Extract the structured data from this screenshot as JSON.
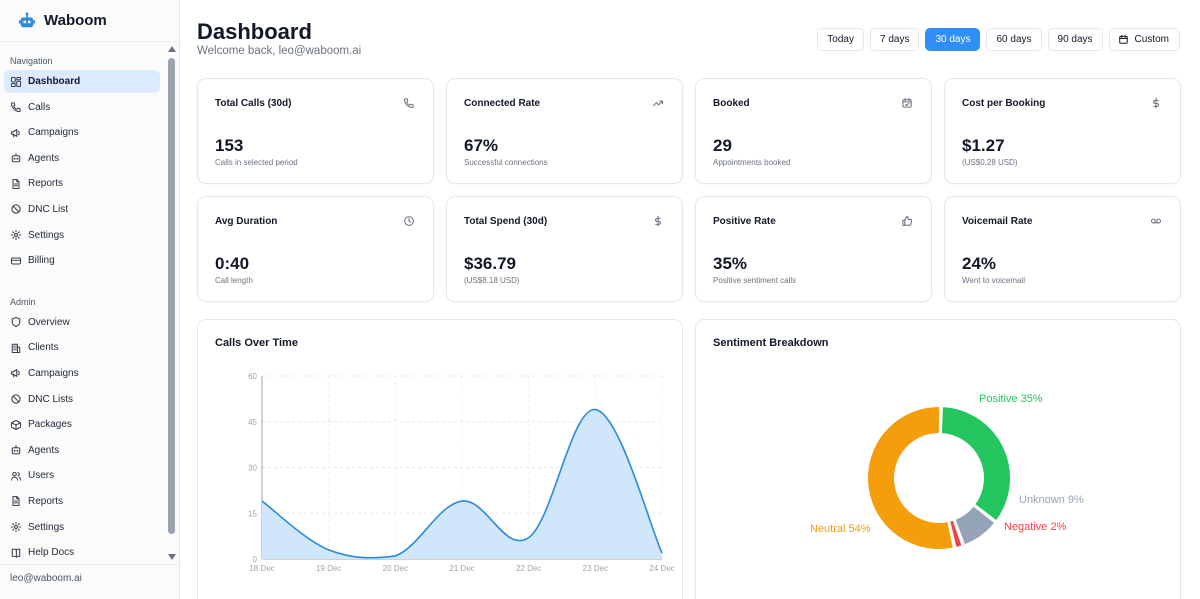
{
  "app": {
    "name": "Waboom"
  },
  "sidebar": {
    "sections": [
      {
        "label": "Navigation",
        "items": [
          {
            "label": "Dashboard",
            "icon": "dashboard-icon",
            "active": true
          },
          {
            "label": "Calls",
            "icon": "phone-icon"
          },
          {
            "label": "Campaigns",
            "icon": "megaphone-icon"
          },
          {
            "label": "Agents",
            "icon": "bot-icon"
          },
          {
            "label": "Reports",
            "icon": "file-icon"
          },
          {
            "label": "DNC List",
            "icon": "ban-icon"
          },
          {
            "label": "Settings",
            "icon": "gear-icon"
          },
          {
            "label": "Billing",
            "icon": "credit-card-icon"
          }
        ]
      },
      {
        "label": "Admin",
        "items": [
          {
            "label": "Overview",
            "icon": "shield-icon"
          },
          {
            "label": "Clients",
            "icon": "building-icon"
          },
          {
            "label": "Campaigns",
            "icon": "megaphone-icon"
          },
          {
            "label": "DNC Lists",
            "icon": "ban-icon"
          },
          {
            "label": "Packages",
            "icon": "package-icon"
          },
          {
            "label": "Agents",
            "icon": "bot-icon"
          },
          {
            "label": "Users",
            "icon": "users-icon"
          },
          {
            "label": "Reports",
            "icon": "file-icon"
          },
          {
            "label": "Settings",
            "icon": "gear-icon"
          },
          {
            "label": "Help Docs",
            "icon": "book-icon"
          }
        ]
      }
    ],
    "footer_email": "leo@waboom.ai"
  },
  "header": {
    "title": "Dashboard",
    "subtitle": "Welcome back, leo@waboom.ai",
    "ranges": [
      "Today",
      "7 days",
      "30 days",
      "60 days",
      "90 days"
    ],
    "active_range": "30 days",
    "custom_label": "Custom"
  },
  "stats": [
    {
      "title": "Total Calls (30d)",
      "value": "153",
      "sub": "Calls in selected period",
      "icon": "phone-icon"
    },
    {
      "title": "Connected Rate",
      "value": "67%",
      "sub": "Successful connections",
      "icon": "trending-up-icon"
    },
    {
      "title": "Booked",
      "value": "29",
      "sub": "Appointments booked",
      "icon": "calendar-check-icon"
    },
    {
      "title": "Cost per Booking",
      "value": "$1.27",
      "sub": "(US$0.28 USD)",
      "icon": "dollar-icon"
    },
    {
      "title": "Avg Duration",
      "value": "0:40",
      "sub": "Call length",
      "icon": "clock-icon"
    },
    {
      "title": "Total Spend (30d)",
      "value": "$36.79",
      "sub": "(US$8.18 USD)",
      "icon": "dollar-icon"
    },
    {
      "title": "Positive Rate",
      "value": "35%",
      "sub": "Positive sentiment calls",
      "icon": "thumbs-up-icon"
    },
    {
      "title": "Voicemail Rate",
      "value": "24%",
      "sub": "Went to voicemail",
      "icon": "voicemail-icon"
    }
  ],
  "chart_data": [
    {
      "type": "area",
      "title": "Calls Over Time",
      "x": [
        "18 Dec",
        "19 Dec",
        "20 Dec",
        "21 Dec",
        "22 Dec",
        "23 Dec",
        "24 Dec"
      ],
      "y_ticks": [
        0,
        15,
        30,
        45,
        60
      ],
      "ylim": [
        0,
        60
      ],
      "grid": true,
      "series": [
        {
          "values": [
            19,
            3,
            1,
            19,
            7,
            49,
            2
          ]
        }
      ],
      "color": "#2b8ad9",
      "fill": "#cfe6fb"
    },
    {
      "type": "pie",
      "title": "Sentiment Breakdown",
      "donut": true,
      "slices": [
        {
          "label": "Positive",
          "value": 35,
          "text": "Positive 35%",
          "color": "#22c55e"
        },
        {
          "label": "Unknown",
          "value": 9,
          "text": "Unknown 9%",
          "color": "#94a3b8"
        },
        {
          "label": "Negative",
          "value": 2,
          "text": "Negative 2%",
          "color": "#ef4444"
        },
        {
          "label": "Neutral",
          "value": 54,
          "text": "Neutral 54%",
          "color": "#f59e0b"
        }
      ]
    }
  ]
}
